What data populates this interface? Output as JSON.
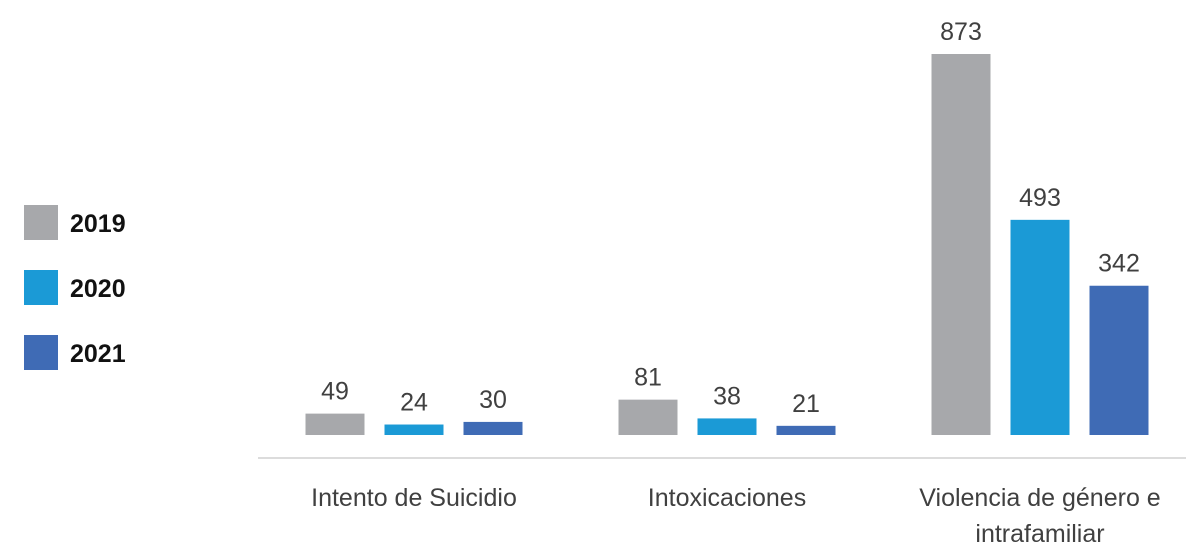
{
  "chart_data": {
    "type": "bar",
    "categories": [
      "Intento de Suicidio",
      "Intoxicaciones",
      "Violencia de género e intrafamiliar"
    ],
    "series": [
      {
        "name": "2019",
        "color": "#a7a8ab",
        "values": [
          49,
          81,
          873
        ]
      },
      {
        "name": "2020",
        "color": "#1b9ad6",
        "values": [
          24,
          38,
          493
        ]
      },
      {
        "name": "2021",
        "color": "#3f6bb5",
        "values": [
          30,
          21,
          342
        ]
      }
    ],
    "legend": "left"
  }
}
